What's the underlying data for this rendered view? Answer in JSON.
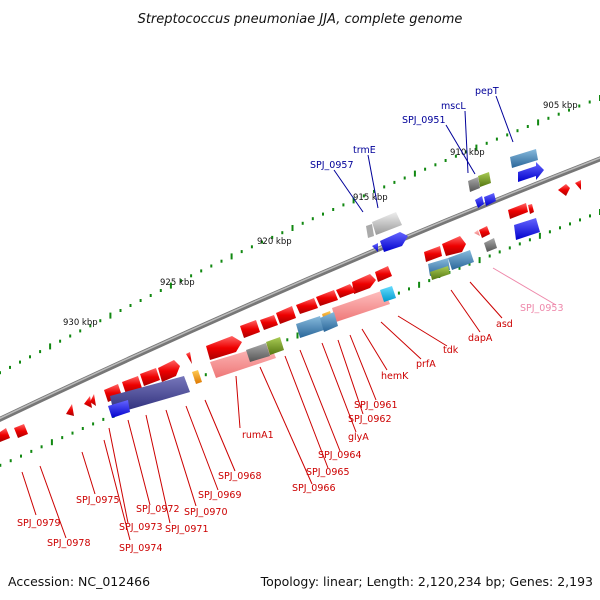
{
  "title": "Streptococcus pneumoniae JJA, complete genome",
  "footer": {
    "accession": "Accession: NC_012466",
    "topology": "Topology: linear; Length: 2,120,234 bp; Genes: 2,193"
  },
  "colors": {
    "red_label": "#cc0000",
    "blue_label": "#000099",
    "pink_label": "#ee88aa",
    "backbone": "#888888",
    "tick": "#118811"
  },
  "scale_labels": [
    "905 kbp",
    "910 kbp",
    "915 kbp",
    "920 kbp",
    "925 kbp",
    "930 kbp"
  ],
  "gene_labels": {
    "pepT": "pepT",
    "mscL": "mscL",
    "SPJ_0951": "SPJ_0951",
    "trmE": "trmE",
    "SPJ_0957": "SPJ_0957",
    "SPJ_0953": "SPJ_0953",
    "asd": "asd",
    "dapA": "dapA",
    "tdk": "tdk",
    "prfA": "prfA",
    "hemK": "hemK",
    "SPJ_0961": "SPJ_0961",
    "SPJ_0962": "SPJ_0962",
    "glyA": "glyA",
    "SPJ_0964": "SPJ_0964",
    "SPJ_0965": "SPJ_0965",
    "SPJ_0966": "SPJ_0966",
    "rumA1": "rumA1",
    "SPJ_0968": "SPJ_0968",
    "SPJ_0969": "SPJ_0969",
    "SPJ_0970": "SPJ_0970",
    "SPJ_0971": "SPJ_0971",
    "SPJ_0972": "SPJ_0972",
    "SPJ_0973": "SPJ_0973",
    "SPJ_0974": "SPJ_0974",
    "SPJ_0975": "SPJ_0975",
    "SPJ_0978": "SPJ_0978",
    "SPJ_0979": "SPJ_0979"
  }
}
